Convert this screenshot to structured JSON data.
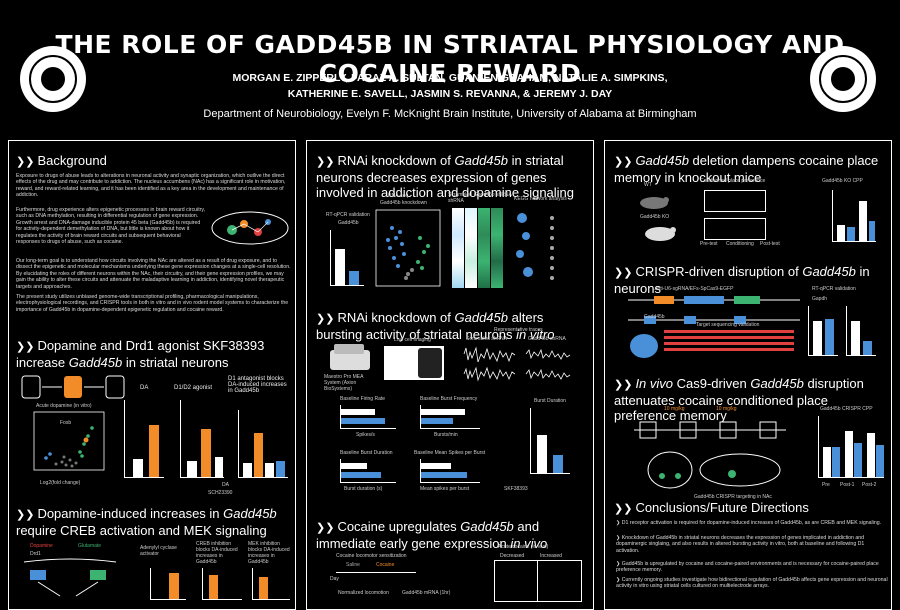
{
  "title": "THE ROLE OF GADD45B IN STRIATAL PHYSIOLOGY AND COCAINE REWARD",
  "authors_line1": "MORGAN E. ZIPPERLY, FARAZ A. SULTAN, GUAN-EN GRAHAM,  NATALIE A. SIMPKINS,",
  "authors_line2": "KATHERINE E. SAVELL, JASMIN S. REVANNA, & JEREMY J.  DAY",
  "department": "Department of Neurobiology, Evelyn F. McKnight Brain Institute, University of Alabama at Birmingham",
  "colors": {
    "orange": "#f28c28",
    "blue": "#4a90d9",
    "green": "#3cb371",
    "background": "#000000"
  },
  "left": {
    "background": {
      "heading": "Background",
      "p1": "Exposure to drugs of abuse leads to alterations in neuronal activity and synaptic organization, which outlive the direct effects of the drug and may contribute to addiction. The nucleus accumbens (NAc) has a significant role in motivation, reward, and reward-related learning, and it has been identified as a key area in the development and maintenance of addiction.",
      "p2": "Furthermore, drug experience alters epigenetic processes in brain reward circuitry, such as DNA methylation, resulting in differential regulation of gene expression. Growth arrest and DNA-damage inducible protein 45 beta (Gadd45b) is required for activity-dependent demethylation of DNA, but little is known about how it regulates the activity of brain reward circuits and subsequent behavioral responses to drugs of abuse, such as cocaine.",
      "p3": "Our long-term goal is to understand how circuits involving the NAc are altered as a result of drug exposure, and to dissect the epigenetic and molecular mechanisms underlying these gene expression changes at a single-cell resolution. By elucidating the roles of different neurons within the NAc, their circuitry, and their gene expression profiles, we may gain the ability to alter these circuits and attenuate the maladaptive learning in addiction, identifying novel therapeutic targets and approaches.",
      "p4": "The present study utilizes unbiased genome-wide transcriptional profiling, pharmacological manipulations, electrophysiological recordings, and CRISPR tools in both in vitro and in vivo rodent model systems to characterize the importance of Gadd45b in dopamine-dependent epigenetic regulation and cocaine reward."
    },
    "dopamine": {
      "heading_pre": "Dopamine and Drd1 agonist SKF38393 increase ",
      "heading_em": "Gadd45b",
      "heading_post": " in striatal neurons",
      "volcano_title": "Acute dopamine (in vitro)",
      "volcano_x": "Log2(fold change)",
      "volcano_y": "P-value",
      "volcano_label": "Fosb",
      "da_label": "DA",
      "d1_label": "D1/D2 agonist",
      "antagonist_label": "D1 antagonist blocks DA-induced increases in Gadd45b",
      "ylabel": "Fold change (vs. vehicle)",
      "sch_label": "SCH23390",
      "da_row": "DA"
    },
    "creb": {
      "heading_pre": "Dopamine-induced increases in ",
      "heading_em": "Gadd45b",
      "heading_post": " require CREB activation and MEK signaling",
      "label_dopamine": "Dopamine",
      "label_drd1": "Drd1",
      "label_glutamate": "Glutamate",
      "label_adenylyl": "Adenylyl cyclase activator",
      "label_creb": "CREB inhibition blocks DA-induced increases in Gadd45b",
      "label_mek": "MEK inhibition blocks DA-induced increases in Gadd45b"
    }
  },
  "middle": {
    "rnai": {
      "heading_pre": "RNAi knockdown of ",
      "heading_em": "Gadd45b",
      "heading_post": " in striatal neurons decreases expression of genes involved in addiction and dopamine signaling",
      "rt_qpcr": "RT-qPCR validation",
      "gene": "Gadd45b",
      "rnaseq": "RNA-seq",
      "rnaseq_sub": "Gadd45b knockdown",
      "scrambled": "Scrambled shRNA",
      "shrna": "Gadd45b shRNA",
      "kegg": "KEGG network analysis",
      "upregulated": "Upregulated",
      "downregulated": "Downregulated"
    },
    "bursting": {
      "heading_pre": "RNAi knockdown of ",
      "heading_em": "Gadd45b",
      "heading_post": " alters bursting activity of striatal neurons ",
      "heading_em2": "in vitro",
      "live_imaging": "Live cell imaging",
      "rep_traces": "Representative traces",
      "scrambled": "Scrambled shRNA",
      "shrna": "Gadd45b shRNA",
      "mea_label": "Maestro Pro MEA System (Axion BioSystems)",
      "chart_titles": [
        "Baseline Firing Rate",
        "Baseline Burst Frequency",
        "Baseline Burst Duration",
        "Baseline Mean Spikes per Burst"
      ],
      "chart_xlabels": [
        "Spikes/s",
        "Bursts/min",
        "Burst duration (s)",
        "Mean spikes per burst"
      ],
      "burst_duration": "Burst Duration",
      "burst_ylabel": "Fold change (vs. baseline)",
      "drug": "SKF38393"
    },
    "cocaine": {
      "heading_pre": "Cocaine upregulates ",
      "heading_em": "Gadd45b",
      "heading_post": " and immediate early gene expression ",
      "heading_em2": "in vivo",
      "sensitization": "Cocaine locomotor sensitization",
      "acute": "Acute cocaine (in vivo)",
      "decreased": "Decreased",
      "increased": "Increased",
      "saline": "Saline",
      "cocaine": "Cocaine",
      "day": "Day",
      "normalized": "Normalized locomotion",
      "gadd_mrna": "Gadd45b mRNA (1hr)"
    }
  },
  "right": {
    "deletion": {
      "heading_pre": "",
      "heading_em": "Gadd45b",
      "heading_post": " deletion dampens cocaine place memory in knockout mice",
      "wt": "WT",
      "ko": "Gadd45b KO",
      "cpp": "Conditioned place preference",
      "ko_cpp": "Gadd45b KO CPP",
      "pre": "Pre-test",
      "cond": "Conditioning",
      "post": "Post-test",
      "ylabel": "Time in cocaine chamber (s)"
    },
    "crispr": {
      "heading_pre": "CRISPR-driven disruption of ",
      "heading_em": "Gadd45b",
      "heading_post": " in neurons",
      "vector": "Lenti-U6-sgRNA/EFs-SpCas9-EGFP",
      "target": "Gadd45b",
      "validation": "RT-qPCR validation",
      "gene": "Gapdh",
      "sg": "Target sequencing validation",
      "ylabel": "Fold change"
    },
    "invivo": {
      "heading_pre": "",
      "heading_em": "In vivo",
      "heading_mid": " Cas9-driven ",
      "heading_em2": "Gadd45b",
      "heading_post": " disruption attenuates cocaine conditioned place preference memory",
      "dose1": "10 mg/kg",
      "dose2": "10 mg/kg",
      "crispr_cpp": "Gadd45b CRISPR CPP",
      "xlabels": [
        "Pre",
        "Post-1",
        "Post-2"
      ],
      "targeting": "Gadd45b CRISPR targeting in NAc",
      "ylabel": "Percent time in cocaine chamber"
    },
    "conclusions": {
      "heading": "Conclusions/Future Directions",
      "items": [
        "D1 receptor activation is required for dopamine-induced increases of Gadd45b, as are CREB and MEK signaling.",
        "Knockdown of Gadd45b in striatal neurons decreases the expression of genes implicated in addiction and dopaminergic singlaing, and also results in altered bursting activity in vitro, both at baseline and following D1 activation.",
        "Gadd45b is upregulated by cocaine and cocaine-paired environments and is necessary for cocaine-paired place preference memory.",
        "Currently ongoing studies investigate how bidirectional regulation of Gadd45b affects gene expression and neuronal activity in vitro using striatal cells cultured on multielectrode arrays."
      ]
    }
  },
  "icons": [
    "uab-seal-left",
    "university-seal-right"
  ]
}
